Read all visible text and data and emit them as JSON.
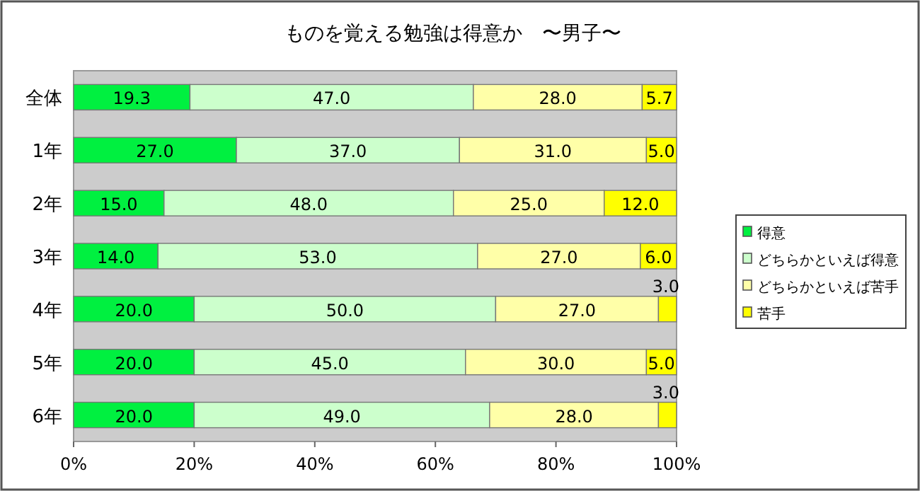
{
  "chart_data": {
    "type": "bar",
    "orientation": "horizontal",
    "stacked": true,
    "title": "ものを覚える勉強は得意か　〜男子〜",
    "categories": [
      "全体",
      "1年",
      "2年",
      "3年",
      "4年",
      "5年",
      "6年"
    ],
    "series": [
      {
        "name": "得意",
        "color": "#00f040",
        "values": [
          19.3,
          27,
          15,
          14,
          20,
          20,
          20
        ],
        "value_labels": [
          "19.3",
          "27.0",
          "15.0",
          "14.0",
          "20.0",
          "20.0",
          "20.0"
        ]
      },
      {
        "name": "どちらかといえば得意",
        "color": "#ccffcc",
        "values": [
          47,
          37,
          48,
          53,
          50,
          45,
          49
        ],
        "value_labels": [
          "47.0",
          "37.0",
          "48.0",
          "53.0",
          "50.0",
          "45.0",
          "49.0"
        ]
      },
      {
        "name": "どちらかといえば苦手",
        "color": "#ffffa8",
        "values": [
          28,
          31,
          25,
          27,
          27,
          30,
          28
        ],
        "value_labels": [
          "28.0",
          "31.0",
          "25.0",
          "27.0",
          "27.0",
          "30.0",
          "28.0"
        ]
      },
      {
        "name": "苦手",
        "color": "#ffff00",
        "values": [
          5.7,
          5,
          12,
          6,
          3,
          5,
          3
        ],
        "value_labels": [
          "5.7",
          "5.0",
          "12.0",
          "6.0",
          "3.0",
          "5.0",
          "3.0"
        ]
      }
    ],
    "xlim": [
      0,
      100
    ],
    "xticks": [
      {
        "value": 0,
        "label": "0%"
      },
      {
        "value": 20,
        "label": "20%"
      },
      {
        "value": 40,
        "label": "40%"
      },
      {
        "value": 60,
        "label": "60%"
      },
      {
        "value": 80,
        "label": "80%"
      },
      {
        "value": 100,
        "label": "100%"
      }
    ],
    "legend": "right"
  }
}
